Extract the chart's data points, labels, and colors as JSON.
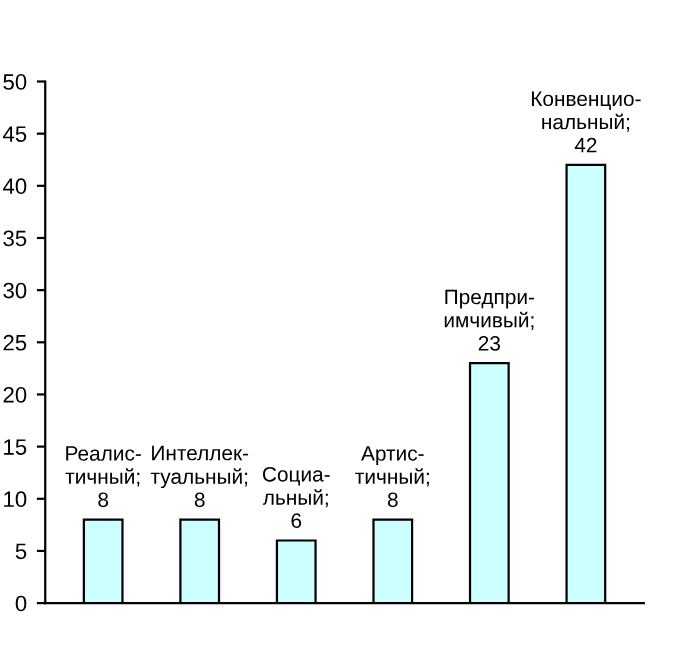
{
  "chart_data": {
    "type": "bar",
    "categories": [
      null,
      null,
      null,
      null,
      null,
      null
    ],
    "values": [
      8,
      8,
      6,
      8,
      23,
      42
    ],
    "value_labels": [
      "Реалис-\nтичный;\n8",
      "Интеллек-\nтуальный;\n8",
      "Социа-\nльный;\n6",
      "Артис-\nтичный;\n8",
      "Предпри-\nимчивый;\n23",
      "Конвенцио-\nнальный;\n42"
    ],
    "color": "#ccffff",
    "ylim": [
      0,
      50
    ],
    "yticks": [
      0,
      5,
      10,
      15,
      20,
      25,
      30,
      35,
      40,
      45,
      50
    ],
    "tick_labels": "y",
    "grid": false,
    "legend": false
  }
}
